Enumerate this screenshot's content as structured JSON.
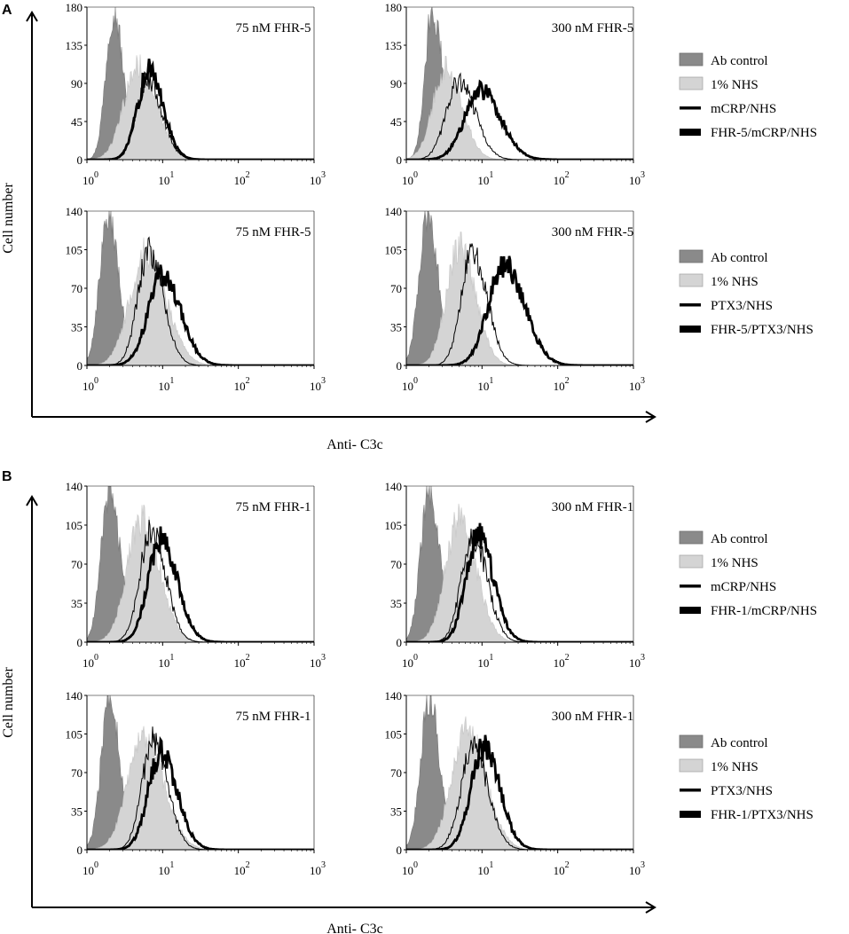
{
  "colors": {
    "ab_control": "#8a8a8a",
    "nhs": "#d4d4d4",
    "line": "#000000",
    "axis": "#000000"
  },
  "figure": {
    "sections": [
      {
        "letter": "A",
        "ylabel": "Cell number",
        "xlabel": "Anti- C3c"
      },
      {
        "letter": "B",
        "ylabel": "Cell number",
        "xlabel": "Anti- C3c"
      }
    ],
    "legends": [
      {
        "items": [
          "Ab control",
          "1% NHS",
          "mCRP/NHS",
          "FHR-5/mCRP/NHS"
        ]
      },
      {
        "items": [
          "Ab control",
          "1% NHS",
          "PTX3/NHS",
          "FHR-5/PTX3/NHS"
        ]
      },
      {
        "items": [
          "Ab control",
          "1% NHS",
          "mCRP/NHS",
          "FHR-1/mCRP/NHS"
        ]
      },
      {
        "items": [
          "Ab control",
          "1% NHS",
          "PTX3/NHS",
          "FHR-1/PTX3/NHS"
        ]
      }
    ]
  },
  "chart_data": [
    {
      "type": "area",
      "title": "75 nM FHR-5",
      "xscale": "log",
      "xlim": [
        1,
        1000
      ],
      "x_ticks": [
        "10",
        "10",
        "10",
        "10"
      ],
      "x_tick_exps": [
        "0",
        "1",
        "2",
        "3"
      ],
      "ylim": [
        0,
        180
      ],
      "y_ticks": [
        "0",
        "45",
        "90",
        "135",
        "180"
      ],
      "series": [
        {
          "name": "Ab control",
          "style": "fill-dark",
          "peak_log10": 0.35,
          "sigma": 0.1,
          "height": 178
        },
        {
          "name": "1% NHS",
          "style": "fill-light",
          "peak_log10": 0.68,
          "sigma": 0.19,
          "height": 110
        },
        {
          "name": "mCRP/NHS",
          "style": "thin",
          "peak_log10": 0.8,
          "sigma": 0.15,
          "height": 95
        },
        {
          "name": "FHR-5/mCRP/NHS",
          "style": "thick",
          "peak_log10": 0.82,
          "sigma": 0.15,
          "height": 105
        }
      ]
    },
    {
      "type": "area",
      "title": "300 nM FHR-5",
      "xscale": "log",
      "xlim": [
        1,
        1000
      ],
      "x_ticks": [
        "10",
        "10",
        "10",
        "10"
      ],
      "x_tick_exps": [
        "0",
        "1",
        "2",
        "3"
      ],
      "ylim": [
        0,
        180
      ],
      "y_ticks": [
        "0",
        "45",
        "90",
        "135",
        "180"
      ],
      "series": [
        {
          "name": "Ab control",
          "style": "fill-dark",
          "peak_log10": 0.35,
          "sigma": 0.1,
          "height": 178
        },
        {
          "name": "1% NHS",
          "style": "fill-light",
          "peak_log10": 0.52,
          "sigma": 0.17,
          "height": 108
        },
        {
          "name": "mCRP/NHS",
          "style": "thin",
          "peak_log10": 0.7,
          "sigma": 0.17,
          "height": 92
        },
        {
          "name": "FHR-5/mCRP/NHS",
          "style": "thick",
          "peak_log10": 0.98,
          "sigma": 0.21,
          "height": 82
        }
      ]
    },
    {
      "type": "area",
      "title": "75 nM FHR-5",
      "xscale": "log",
      "xlim": [
        1,
        1000
      ],
      "x_ticks": [
        "10",
        "10",
        "10",
        "10"
      ],
      "x_tick_exps": [
        "0",
        "1",
        "2",
        "3"
      ],
      "ylim": [
        0,
        140
      ],
      "y_ticks": [
        "0",
        "35",
        "70",
        "105",
        "140"
      ],
      "series": [
        {
          "name": "Ab control",
          "style": "fill-dark",
          "peak_log10": 0.28,
          "sigma": 0.11,
          "height": 138
        },
        {
          "name": "1% NHS",
          "style": "fill-light",
          "peak_log10": 0.78,
          "sigma": 0.21,
          "height": 103
        },
        {
          "name": "PTX3/NHS",
          "style": "thin",
          "peak_log10": 0.82,
          "sigma": 0.15,
          "height": 103
        },
        {
          "name": "FHR-5/PTX3/NHS",
          "style": "thick",
          "peak_log10": 1.0,
          "sigma": 0.19,
          "height": 82
        }
      ]
    },
    {
      "type": "area",
      "title": "300 nM FHR-5",
      "xscale": "log",
      "xlim": [
        1,
        1000
      ],
      "x_ticks": [
        "10",
        "10",
        "10",
        "10"
      ],
      "x_tick_exps": [
        "0",
        "1",
        "2",
        "3"
      ],
      "ylim": [
        0,
        140
      ],
      "y_ticks": [
        "0",
        "35",
        "70",
        "105",
        "140"
      ],
      "series": [
        {
          "name": "Ab control",
          "style": "fill-dark",
          "peak_log10": 0.28,
          "sigma": 0.11,
          "height": 138
        },
        {
          "name": "1% NHS",
          "style": "fill-light",
          "peak_log10": 0.7,
          "sigma": 0.17,
          "height": 108
        },
        {
          "name": "PTX3/NHS",
          "style": "thin",
          "peak_log10": 0.88,
          "sigma": 0.15,
          "height": 103
        },
        {
          "name": "FHR-5/PTX3/NHS",
          "style": "thick",
          "peak_log10": 1.3,
          "sigma": 0.21,
          "height": 92
        }
      ]
    },
    {
      "type": "area",
      "title": "75 nM FHR-1",
      "xscale": "log",
      "xlim": [
        1,
        1000
      ],
      "x_ticks": [
        "10",
        "10",
        "10",
        "10"
      ],
      "x_tick_exps": [
        "0",
        "1",
        "2",
        "3"
      ],
      "ylim": [
        0,
        140
      ],
      "y_ticks": [
        "0",
        "35",
        "70",
        "105",
        "140"
      ],
      "series": [
        {
          "name": "Ab control",
          "style": "fill-dark",
          "peak_log10": 0.3,
          "sigma": 0.11,
          "height": 138
        },
        {
          "name": "1% NHS",
          "style": "fill-light",
          "peak_log10": 0.72,
          "sigma": 0.19,
          "height": 110
        },
        {
          "name": "mCRP/NHS",
          "style": "thin",
          "peak_log10": 0.85,
          "sigma": 0.15,
          "height": 102
        },
        {
          "name": "FHR-1/mCRP/NHS",
          "style": "thick",
          "peak_log10": 0.98,
          "sigma": 0.17,
          "height": 92
        }
      ]
    },
    {
      "type": "area",
      "title": "300 nM FHR-1",
      "xscale": "log",
      "xlim": [
        1,
        1000
      ],
      "x_ticks": [
        "10",
        "10",
        "10",
        "10"
      ],
      "x_tick_exps": [
        "0",
        "1",
        "2",
        "3"
      ],
      "ylim": [
        0,
        140
      ],
      "y_ticks": [
        "0",
        "35",
        "70",
        "105",
        "140"
      ],
      "series": [
        {
          "name": "Ab control",
          "style": "fill-dark",
          "peak_log10": 0.3,
          "sigma": 0.11,
          "height": 138
        },
        {
          "name": "1% NHS",
          "style": "fill-light",
          "peak_log10": 0.7,
          "sigma": 0.18,
          "height": 110
        },
        {
          "name": "mCRP/NHS",
          "style": "thin",
          "peak_log10": 0.88,
          "sigma": 0.15,
          "height": 96
        },
        {
          "name": "FHR-1/mCRP/NHS",
          "style": "thick",
          "peak_log10": 0.95,
          "sigma": 0.16,
          "height": 95
        }
      ]
    },
    {
      "type": "area",
      "title": "75 nM FHR-1",
      "xscale": "log",
      "xlim": [
        1,
        1000
      ],
      "x_ticks": [
        "10",
        "10",
        "10",
        "10"
      ],
      "x_tick_exps": [
        "0",
        "1",
        "2",
        "3"
      ],
      "ylim": [
        0,
        140
      ],
      "y_ticks": [
        "0",
        "35",
        "70",
        "105",
        "140"
      ],
      "series": [
        {
          "name": "Ab control",
          "style": "fill-dark",
          "peak_log10": 0.3,
          "sigma": 0.11,
          "height": 138
        },
        {
          "name": "1% NHS",
          "style": "fill-light",
          "peak_log10": 0.75,
          "sigma": 0.21,
          "height": 100
        },
        {
          "name": "PTX3/NHS",
          "style": "thin",
          "peak_log10": 0.88,
          "sigma": 0.15,
          "height": 100
        },
        {
          "name": "FHR-1/PTX3/NHS",
          "style": "thick",
          "peak_log10": 0.98,
          "sigma": 0.17,
          "height": 88
        }
      ]
    },
    {
      "type": "area",
      "title": "300 nM FHR-1",
      "xscale": "log",
      "xlim": [
        1,
        1000
      ],
      "x_ticks": [
        "10",
        "10",
        "10",
        "10"
      ],
      "x_tick_exps": [
        "0",
        "1",
        "2",
        "3"
      ],
      "ylim": [
        0,
        140
      ],
      "y_ticks": [
        "0",
        "35",
        "70",
        "105",
        "140"
      ],
      "series": [
        {
          "name": "Ab control",
          "style": "fill-dark",
          "peak_log10": 0.3,
          "sigma": 0.11,
          "height": 138
        },
        {
          "name": "1% NHS",
          "style": "fill-light",
          "peak_log10": 0.8,
          "sigma": 0.2,
          "height": 110
        },
        {
          "name": "PTX3/NHS",
          "style": "thin",
          "peak_log10": 0.88,
          "sigma": 0.16,
          "height": 92
        },
        {
          "name": "FHR-1/PTX3/NHS",
          "style": "thick",
          "peak_log10": 1.02,
          "sigma": 0.17,
          "height": 92
        }
      ]
    }
  ]
}
